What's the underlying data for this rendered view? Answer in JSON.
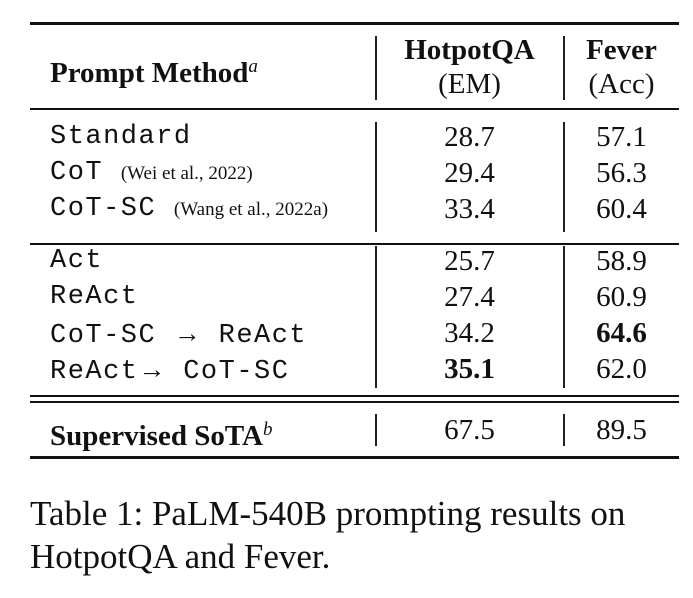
{
  "table": {
    "header": {
      "method": "Prompt Method",
      "method_sup": "a",
      "col1_name": "HotpotQA",
      "col1_metric": "(EM)",
      "col2_name": "Fever",
      "col2_metric": "(Acc)"
    },
    "group1": [
      {
        "method": "Standard",
        "cite": "",
        "hotpotqa": "28.7",
        "fever": "57.1"
      },
      {
        "method": "CoT",
        "cite": "(Wei et al., 2022)",
        "hotpotqa": "29.4",
        "fever": "56.3"
      },
      {
        "method": "CoT-SC",
        "cite": "(Wang et al., 2022a)",
        "hotpotqa": "33.4",
        "fever": "60.4"
      }
    ],
    "group2": [
      {
        "method": "Act",
        "hotpotqa": "25.7",
        "fever": "58.9"
      },
      {
        "method": "ReAct",
        "hotpotqa": "27.4",
        "fever": "60.9"
      },
      {
        "method_a": "CoT-SC",
        "arrow": "→",
        "method_b": "ReAct",
        "hotpotqa": "34.2",
        "fever": "64.6",
        "best": "fever"
      },
      {
        "method_a": "ReAct",
        "arrow": "→",
        "method_b": "CoT-SC",
        "hotpotqa": "35.1",
        "fever": "62.0",
        "best": "hotpotqa"
      }
    ],
    "supervised": {
      "method": "Supervised SoTA",
      "method_sup": "b",
      "hotpotqa": "67.5",
      "fever": "89.5"
    }
  },
  "caption": "Table 1: PaLM-540B prompting results on HotpotQA and Fever."
}
